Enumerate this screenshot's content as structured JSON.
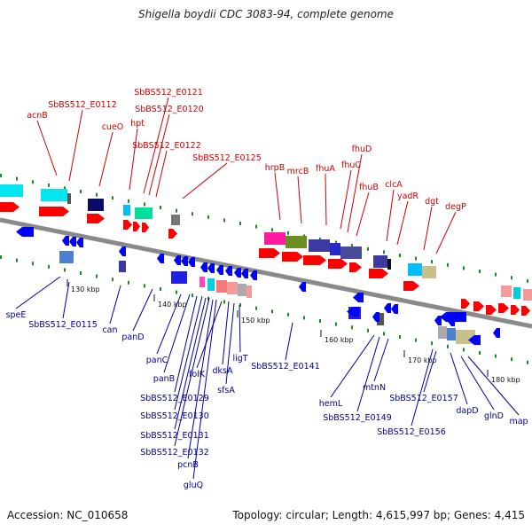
{
  "header": {
    "title": "Shigella boydii CDC 3083-94, complete genome"
  },
  "footer": {
    "accession": "Accession: NC_010658",
    "topology": "Topology: circular; Length: 4,615,997 bp; Genes: 4,415"
  },
  "colors": {
    "top_label": "#cc0000",
    "bottom_label": "#00009a",
    "forward_arrow": "#ff0000",
    "reverse_arrow": "#0000ff",
    "backbone": "#8a8a8a",
    "tick_mark": "#1a8c1a"
  },
  "ticks": [
    "130 kbp",
    "140 kbp",
    "150 kbp",
    "160 kbp",
    "170 kbp",
    "180 kbp"
  ],
  "top_labels": [
    "acnB",
    "SbBS512_E0112",
    "cueO",
    "hpt",
    "SbBS512_E0121",
    "SbBS512_E0120",
    "SbBS512_E0122",
    "SbBS512_E0125",
    "hrpB",
    "mrcB",
    "fhuA",
    "fhuC",
    "fhuD",
    "fhuB",
    "clcA",
    "yadR",
    "dgt",
    "degP"
  ],
  "bottom_labels": [
    "speE",
    "SbBS512_E0115",
    "can",
    "panD",
    "panC",
    "panB",
    "SbBS512_E0129",
    "SbBS512_E0130",
    "SbBS512_E0131",
    "SbBS512_E0132",
    "pcnB",
    "gluQ",
    "folK",
    "dksA",
    "sfsA",
    "ligT",
    "SbBS512_E0141",
    "hemL",
    "SbBS512_E0149",
    "mtnN",
    "SbBS512_E0156",
    "SbBS512_E0157",
    "dapD",
    "glnD",
    "map"
  ]
}
